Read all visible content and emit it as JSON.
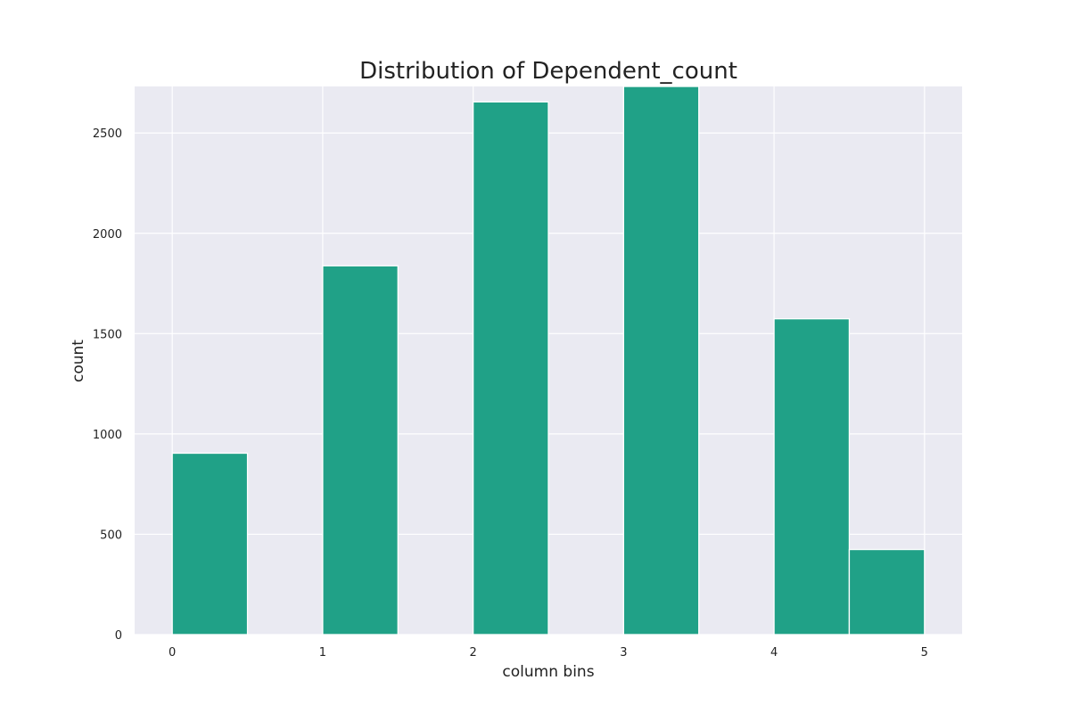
{
  "chart_data": {
    "type": "bar",
    "title": "Distribution of Dependent_count",
    "xlabel": "column bins",
    "ylabel": "count",
    "x_ticks": [
      0,
      1,
      2,
      3,
      4,
      5
    ],
    "y_ticks": [
      0,
      500,
      1000,
      1500,
      2000,
      2500
    ],
    "xlim": [
      -0.25,
      5.25
    ],
    "ylim": [
      0,
      2732
    ],
    "grid": true,
    "legend": "none",
    "bins": [
      {
        "x_start": 0.0,
        "x_end": 0.5,
        "value": 904
      },
      {
        "x_start": 0.5,
        "x_end": 1.0,
        "value": 0
      },
      {
        "x_start": 1.0,
        "x_end": 1.5,
        "value": 1838
      },
      {
        "x_start": 1.5,
        "x_end": 2.0,
        "value": 0
      },
      {
        "x_start": 2.0,
        "x_end": 2.5,
        "value": 2655
      },
      {
        "x_start": 2.5,
        "x_end": 3.0,
        "value": 0
      },
      {
        "x_start": 3.0,
        "x_end": 3.5,
        "value": 2732
      },
      {
        "x_start": 3.5,
        "x_end": 4.0,
        "value": 0
      },
      {
        "x_start": 4.0,
        "x_end": 4.5,
        "value": 1574
      },
      {
        "x_start": 4.5,
        "x_end": 5.0,
        "value": 424
      }
    ],
    "colors": {
      "bar": "#20a187",
      "bar_edge": "#ffffff",
      "plot_background": "#eaeaf2",
      "grid": "#ffffff"
    }
  }
}
